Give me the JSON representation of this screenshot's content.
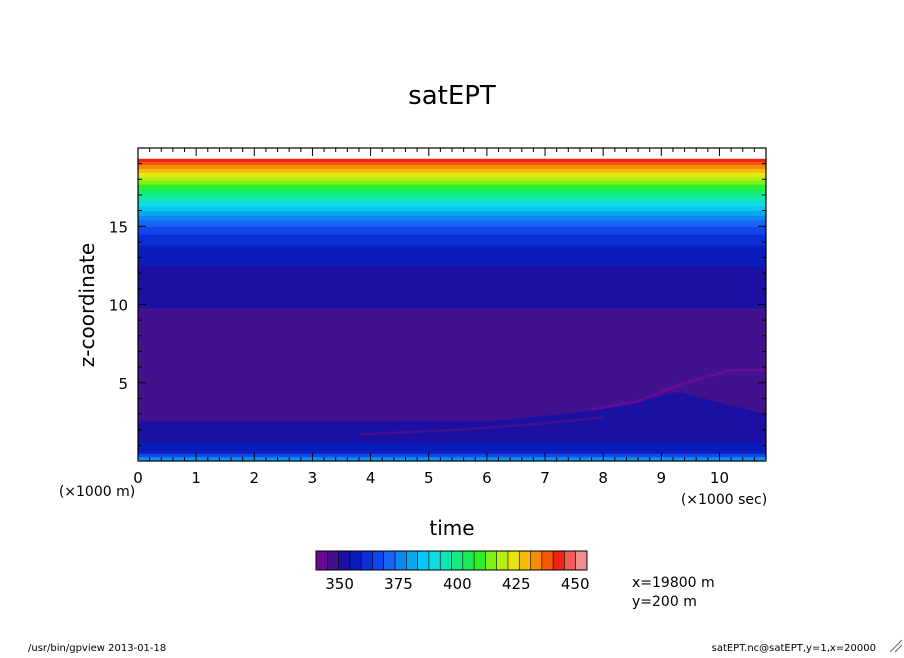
{
  "chart_data": {
    "type": "heatmap",
    "title": "satEPT",
    "xlabel": "time",
    "xunit": "(×1000 sec)",
    "ylabel": "z-coordinate",
    "yunit": "(×1000 m)",
    "xlim": [
      0,
      10.8
    ],
    "ylim": [
      0,
      20
    ],
    "x_ticks": [
      "0",
      "1",
      "2",
      "3",
      "4",
      "5",
      "6",
      "7",
      "8",
      "9",
      "10"
    ],
    "y_ticks": [
      "5",
      "10",
      "15"
    ],
    "colorbar": {
      "min": 340,
      "max": 450,
      "step": 5,
      "tick_labels": [
        "350",
        "375",
        "400",
        "425",
        "450"
      ],
      "colors": [
        "#6a0a98",
        "#42128e",
        "#1c10a4",
        "#0b1cbd",
        "#0b2ed6",
        "#1146ee",
        "#1a64f5",
        "#0d86ee",
        "#08a6ee",
        "#03c8f3",
        "#0fdce0",
        "#0fe6b4",
        "#12ea86",
        "#1bec55",
        "#2fee27",
        "#7df01a",
        "#b8f016",
        "#e6e610",
        "#f5bc0a",
        "#f58c08",
        "#f55608",
        "#f02412",
        "#f05c5c",
        "#f08d8d"
      ]
    },
    "bands": [
      {
        "z0": 0,
        "z1": 0.15,
        "value": 380
      },
      {
        "z0": 0.15,
        "value": 375,
        "z1": 0.3
      },
      {
        "z0": 0.3,
        "z1": 0.5,
        "value": 365
      },
      {
        "z0": 0.5,
        "z1": 1.2,
        "value": 355
      },
      {
        "z0": 1.2,
        "z1": 2.6,
        "value": 350
      },
      {
        "z0": 2.6,
        "z1": 9.8,
        "value": 345
      },
      {
        "z0": 9.8,
        "z1": 12.5,
        "value": 350
      },
      {
        "z0": 12.5,
        "z1": 13.8,
        "value": 355
      },
      {
        "z0": 13.8,
        "z1": 14.5,
        "value": 360
      },
      {
        "z0": 14.5,
        "z1": 15.0,
        "value": 365
      },
      {
        "z0": 15.0,
        "z1": 15.4,
        "value": 370
      },
      {
        "z0": 15.4,
        "z1": 15.7,
        "value": 375
      },
      {
        "z0": 15.7,
        "z1": 16.0,
        "value": 380
      },
      {
        "z0": 16.0,
        "z1": 16.3,
        "value": 385
      },
      {
        "z0": 16.3,
        "z1": 16.6,
        "value": 390
      },
      {
        "z0": 16.6,
        "z1": 16.9,
        "value": 395
      },
      {
        "z0": 16.9,
        "z1": 17.2,
        "value": 400
      },
      {
        "z0": 17.2,
        "z1": 17.45,
        "value": 405
      },
      {
        "z0": 17.45,
        "z1": 17.7,
        "value": 410
      },
      {
        "z0": 17.7,
        "z1": 17.95,
        "value": 415
      },
      {
        "z0": 17.95,
        "z1": 18.2,
        "value": 420
      },
      {
        "z0": 18.2,
        "z1": 18.45,
        "value": 425
      },
      {
        "z0": 18.45,
        "z1": 18.7,
        "value": 430
      },
      {
        "z0": 18.7,
        "z1": 18.95,
        "value": 435
      },
      {
        "z0": 18.95,
        "z1": 19.15,
        "value": 440
      },
      {
        "z0": 19.15,
        "z1": 19.35,
        "value": 445
      },
      {
        "z0": 19.35,
        "z1": 20,
        "value": null
      }
    ],
    "features": [
      {
        "kind": "plume",
        "value": 350,
        "points": [
          [
            3.8,
            1.8
          ],
          [
            6.5,
            2.7
          ],
          [
            7.8,
            3.2
          ],
          [
            9.3,
            4.4
          ],
          [
            10.8,
            3.0
          ],
          [
            10.8,
            1.2
          ],
          [
            6.5,
            1.3
          ],
          [
            3.8,
            1.8
          ]
        ]
      },
      {
        "kind": "streak",
        "value": 340,
        "points": [
          [
            7.8,
            3.3
          ],
          [
            8.6,
            3.8
          ],
          [
            9.4,
            5.0
          ],
          [
            10.2,
            5.8
          ],
          [
            10.8,
            5.8
          ]
        ]
      },
      {
        "kind": "streak",
        "value": 345,
        "points": [
          [
            3.8,
            1.7
          ],
          [
            5.5,
            2.0
          ],
          [
            7.0,
            2.4
          ],
          [
            8.0,
            2.8
          ]
        ]
      }
    ]
  },
  "info_x": "x=19800 m",
  "info_y": "y=200 m",
  "footer_left": "/usr/bin/gpview  2013-01-18",
  "footer_right": "satEPT.nc@satEPT,y=1,x=20000"
}
